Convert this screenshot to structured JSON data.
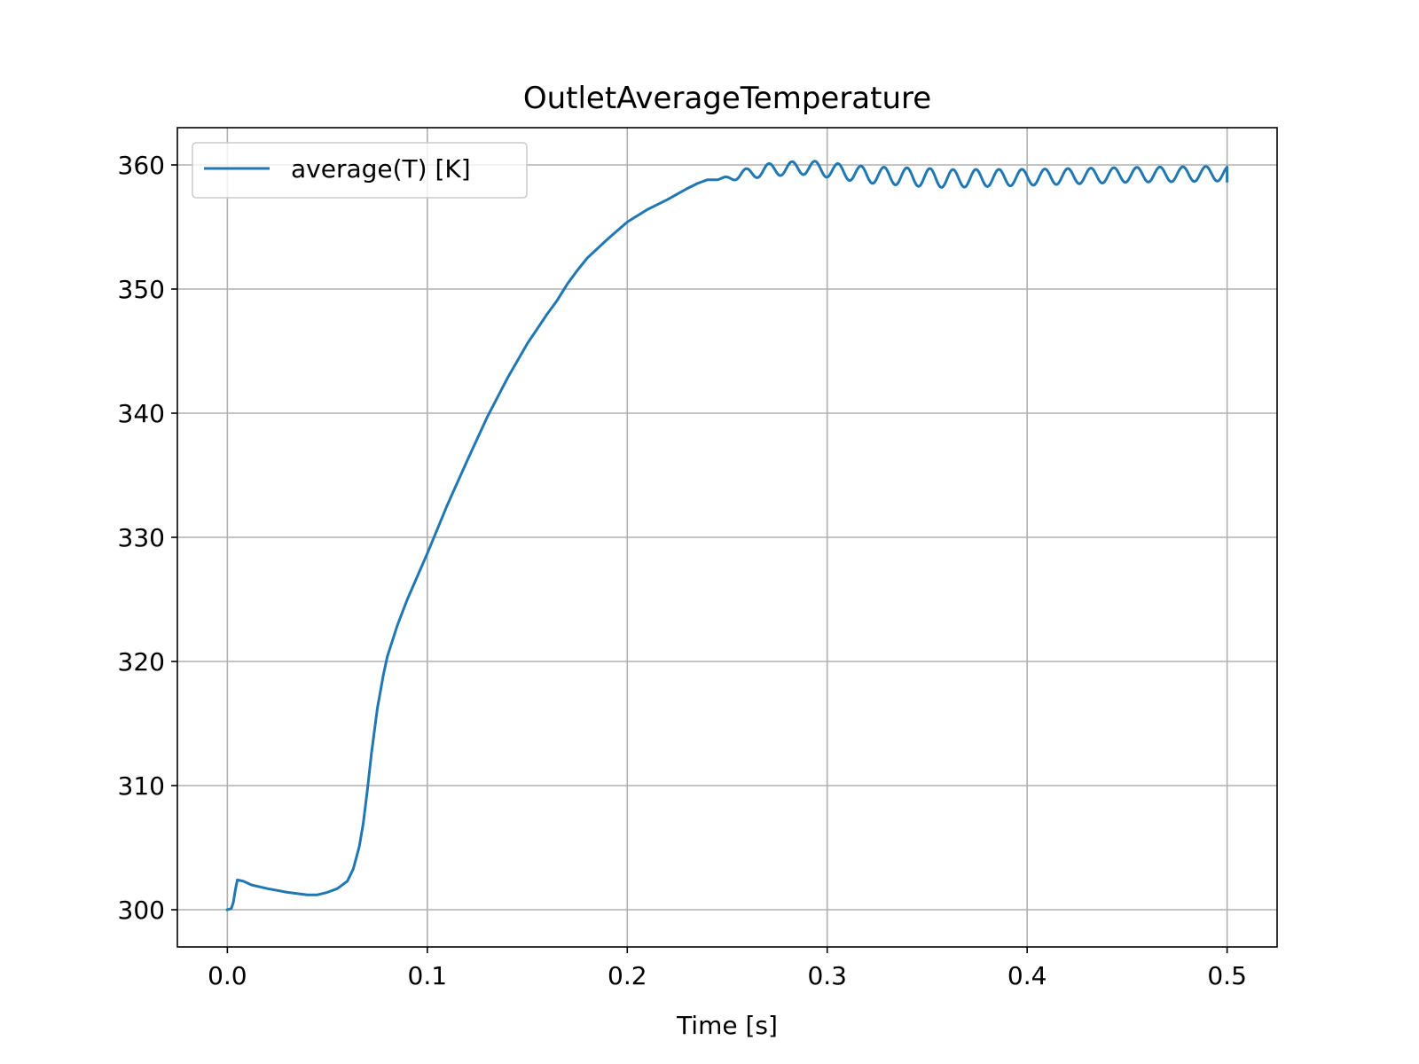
{
  "chart_data": {
    "type": "line",
    "title": "OutletAverageTemperature",
    "xlabel": "Time [s]",
    "ylabel": "",
    "xlim": [
      -0.025,
      0.525
    ],
    "ylim": [
      297,
      363
    ],
    "xticks": [
      "0.0",
      "0.1",
      "0.2",
      "0.3",
      "0.4",
      "0.5"
    ],
    "xtick_values": [
      0.0,
      0.1,
      0.2,
      0.3,
      0.4,
      0.5
    ],
    "yticks": [
      "300",
      "310",
      "320",
      "330",
      "340",
      "350",
      "360"
    ],
    "ytick_values": [
      300,
      310,
      320,
      330,
      340,
      350,
      360
    ],
    "grid": true,
    "legend_position": "upper-left",
    "series": [
      {
        "name": "average(T) [K]",
        "color": "#1f77b4",
        "x": [
          0.0,
          0.002,
          0.003,
          0.004,
          0.005,
          0.008,
          0.012,
          0.02,
          0.03,
          0.04,
          0.045,
          0.05,
          0.055,
          0.06,
          0.063,
          0.066,
          0.068,
          0.07,
          0.072,
          0.075,
          0.078,
          0.08,
          0.085,
          0.09,
          0.1,
          0.11,
          0.12,
          0.13,
          0.14,
          0.15,
          0.16,
          0.165,
          0.17,
          0.175,
          0.18,
          0.19,
          0.2,
          0.21,
          0.22,
          0.23,
          0.235,
          0.24,
          0.245
        ],
        "y": [
          300.0,
          300.1,
          300.6,
          301.6,
          302.4,
          302.3,
          302.0,
          301.7,
          301.4,
          301.2,
          301.2,
          301.4,
          301.7,
          302.3,
          303.3,
          305.1,
          307.0,
          309.6,
          312.5,
          316.2,
          318.9,
          320.4,
          322.9,
          325.0,
          328.7,
          332.6,
          336.2,
          339.7,
          342.8,
          345.6,
          348.0,
          349.1,
          350.4,
          351.5,
          352.5,
          354.0,
          355.4,
          356.4,
          357.2,
          358.1,
          358.5,
          358.8,
          358.8
        ],
        "oscillation": {
          "start": 0.245,
          "end": 0.5,
          "period": 0.0115,
          "points": [
            [
              0.245,
              358.8
            ],
            [
              0.27,
              359.6
            ],
            [
              0.29,
              359.8
            ],
            [
              0.32,
              359.2
            ],
            [
              0.36,
              358.9
            ],
            [
              0.4,
              359.0
            ],
            [
              0.45,
              359.2
            ],
            [
              0.5,
              359.3
            ]
          ],
          "amplitude": [
            [
              0.245,
              0.35
            ],
            [
              0.27,
              0.5
            ],
            [
              0.3,
              0.6
            ],
            [
              0.35,
              0.75
            ],
            [
              0.4,
              0.65
            ],
            [
              0.45,
              0.6
            ],
            [
              0.5,
              0.6
            ]
          ],
          "end_value": 358.7
        }
      }
    ]
  }
}
